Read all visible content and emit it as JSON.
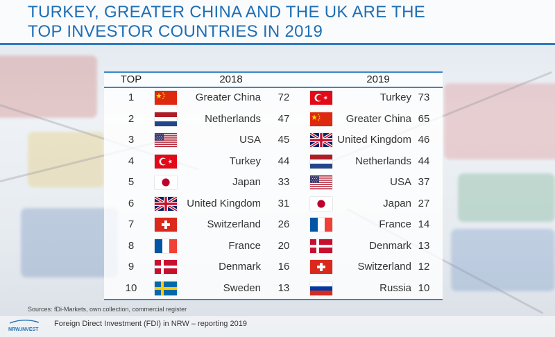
{
  "title": "TURKEY, GREATER CHINA AND THE UK ARE THE\nTOP INVESTOR COUNTRIES IN 2019",
  "columns": {
    "rank": "TOP",
    "year1": "2018",
    "year2": "2019"
  },
  "rows": [
    {
      "rank": "1",
      "c2018": {
        "country": "Greater China",
        "value": "72",
        "flag": "china-flag"
      },
      "c2019": {
        "country": "Turkey",
        "value": "73",
        "flag": "turkey-flag"
      }
    },
    {
      "rank": "2",
      "c2018": {
        "country": "Netherlands",
        "value": "47",
        "flag": "netherlands-flag"
      },
      "c2019": {
        "country": "Greater China",
        "value": "65",
        "flag": "china-flag"
      }
    },
    {
      "rank": "3",
      "c2018": {
        "country": "USA",
        "value": "45",
        "flag": "usa-flag"
      },
      "c2019": {
        "country": "United Kingdom",
        "value": "46",
        "flag": "uk-flag"
      }
    },
    {
      "rank": "4",
      "c2018": {
        "country": "Turkey",
        "value": "44",
        "flag": "turkey-flag"
      },
      "c2019": {
        "country": "Netherlands",
        "value": "44",
        "flag": "netherlands-flag"
      }
    },
    {
      "rank": "5",
      "c2018": {
        "country": "Japan",
        "value": "33",
        "flag": "japan-flag"
      },
      "c2019": {
        "country": "USA",
        "value": "37",
        "flag": "usa-flag"
      }
    },
    {
      "rank": "6",
      "c2018": {
        "country": "United Kingdom",
        "value": "31",
        "flag": "uk-flag"
      },
      "c2019": {
        "country": "Japan",
        "value": "27",
        "flag": "japan-flag"
      }
    },
    {
      "rank": "7",
      "c2018": {
        "country": "Switzerland",
        "value": "26",
        "flag": "switzerland-flag"
      },
      "c2019": {
        "country": "France",
        "value": "14",
        "flag": "france-flag"
      }
    },
    {
      "rank": "8",
      "c2018": {
        "country": "France",
        "value": "20",
        "flag": "france-flag"
      },
      "c2019": {
        "country": "Denmark",
        "value": "13",
        "flag": "denmark-flag"
      }
    },
    {
      "rank": "9",
      "c2018": {
        "country": "Denmark",
        "value": "16",
        "flag": "denmark-flag"
      },
      "c2019": {
        "country": "Switzerland",
        "value": "12",
        "flag": "switzerland-flag"
      }
    },
    {
      "rank": "10",
      "c2018": {
        "country": "Sweden",
        "value": "13",
        "flag": "sweden-flag"
      },
      "c2019": {
        "country": "Russia",
        "value": "10",
        "flag": "russia-flag"
      }
    }
  ],
  "footer": {
    "sources": "Sources: fDi-Markets, own collection, commercial register",
    "logo": "NRW.INVEST",
    "text": "Foreign Direct Investment (FDI) in NRW – reporting 2019"
  },
  "colors": {
    "accent": "#2f7bbf",
    "title": "#1f6fb5"
  }
}
